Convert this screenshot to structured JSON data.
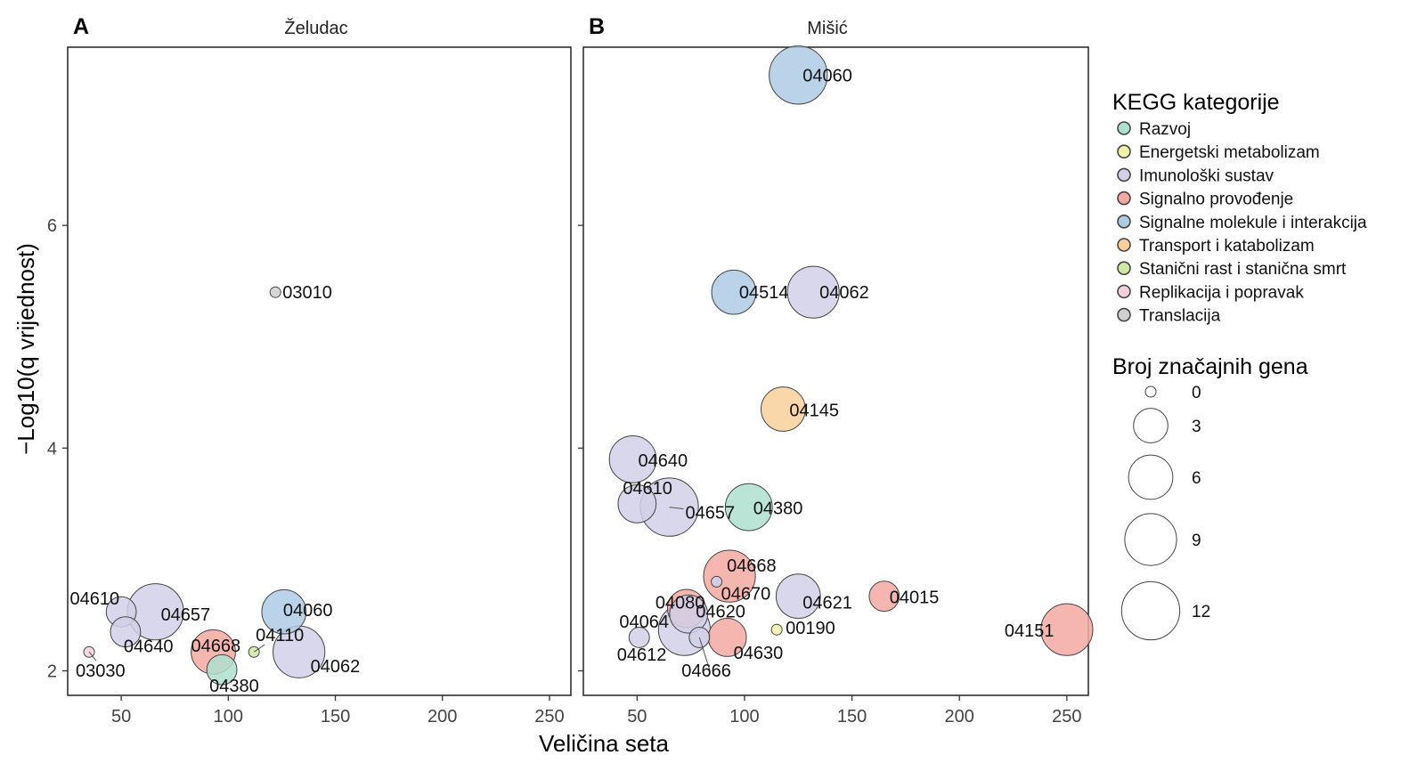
{
  "figure": {
    "ylabel": "−Log10(q vrijednost)",
    "xlabel": "Veličina seta"
  },
  "legend": {
    "category_title": "KEGG kategorije",
    "size_title": "Broj značajnih gena",
    "size_values": [
      "0",
      "3",
      "6",
      "9",
      "12"
    ]
  },
  "colors": {
    "Razvoj": "#aee0cf",
    "Energetski metabolizam": "#f1f2a9",
    "Imunološki sustav": "#d1d0e7",
    "Signalno provođenje": "#f5a9a2",
    "Signalne molekule i interakcija": "#aecbe4",
    "Transport i katabolizam": "#f9cf9c",
    "Stanični rast i stanična smrt": "#cfe8a6",
    "Replikacija i popravak": "#f4d0dd",
    "Translacija": "#cfcfcf"
  },
  "chart_data": [
    {
      "type": "scatter",
      "panel_letter": "A",
      "title": "Želudac",
      "xlabel": "Veličina seta",
      "ylabel": "−Log10(q vrijednost)",
      "xlim": [
        25,
        260
      ],
      "ylim": [
        1.78,
        7.6
      ],
      "xticks": [
        50,
        100,
        150,
        200,
        250
      ],
      "yticks": [
        2,
        4,
        6
      ],
      "size_legend_title": "Broj značajnih gena",
      "points": [
        {
          "label": "03010",
          "x": 122,
          "y": 5.4,
          "genes": 0,
          "category": "Translacija"
        },
        {
          "label": "04610",
          "x": 50,
          "y": 2.53,
          "genes": 2,
          "category": "Imunološki sustav"
        },
        {
          "label": "04657",
          "x": 66,
          "y": 2.53,
          "genes": 11,
          "category": "Imunološki sustav"
        },
        {
          "label": "04640",
          "x": 52,
          "y": 2.35,
          "genes": 2,
          "category": "Imunološki sustav"
        },
        {
          "label": "04060",
          "x": 126,
          "y": 2.53,
          "genes": 6,
          "category": "Signalne molekule i interakcija"
        },
        {
          "label": "04110",
          "x": 112,
          "y": 2.17,
          "genes": 0,
          "category": "Stanični rast i stanična smrt"
        },
        {
          "label": "04668",
          "x": 93,
          "y": 2.17,
          "genes": 6,
          "category": "Signalno provođenje"
        },
        {
          "label": "04062",
          "x": 133,
          "y": 2.17,
          "genes": 9,
          "category": "Imunološki sustav"
        },
        {
          "label": "03030",
          "x": 35,
          "y": 2.17,
          "genes": 0,
          "category": "Replikacija i popravak"
        },
        {
          "label": "04380",
          "x": 97,
          "y": 2.01,
          "genes": 2,
          "category": "Razvoj"
        }
      ]
    },
    {
      "type": "scatter",
      "panel_letter": "B",
      "title": "Mišić",
      "xlabel": "Veličina seta",
      "ylabel": "−Log10(q vrijednost)",
      "xlim": [
        25,
        260
      ],
      "ylim": [
        1.78,
        7.6
      ],
      "xticks": [
        50,
        100,
        150,
        200,
        250
      ],
      "yticks": [
        2,
        4,
        6
      ],
      "size_legend_title": "Broj značajnih gena",
      "points": [
        {
          "label": "04060",
          "x": 125,
          "y": 7.35,
          "genes": 12,
          "category": "Signalne molekule i interakcija"
        },
        {
          "label": "04514",
          "x": 95,
          "y": 5.4,
          "genes": 6,
          "category": "Signalne molekule i interakcija"
        },
        {
          "label": "04062",
          "x": 132,
          "y": 5.4,
          "genes": 9,
          "category": "Imunološki sustav"
        },
        {
          "label": "04145",
          "x": 118,
          "y": 4.35,
          "genes": 6,
          "category": "Transport i katabolizam"
        },
        {
          "label": "04640",
          "x": 48,
          "y": 3.9,
          "genes": 7,
          "category": "Imunološki sustav"
        },
        {
          "label": "04610",
          "x": 50,
          "y": 3.5,
          "genes": 4,
          "category": "Imunološki sustav"
        },
        {
          "label": "04657",
          "x": 65,
          "y": 3.47,
          "genes": 12,
          "category": "Imunološki sustav"
        },
        {
          "label": "04380",
          "x": 102,
          "y": 3.47,
          "genes": 7,
          "category": "Razvoj"
        },
        {
          "label": "04668",
          "x": 93,
          "y": 2.85,
          "genes": 9,
          "category": "Signalno provođenje"
        },
        {
          "label": "04670",
          "x": 87,
          "y": 2.8,
          "genes": 0,
          "category": "Imunološki sustav"
        },
        {
          "label": "04080",
          "x": 73,
          "y": 2.56,
          "genes": 4,
          "category": "Signalno provođenje"
        },
        {
          "label": "04621",
          "x": 125,
          "y": 2.67,
          "genes": 6,
          "category": "Imunološki sustav"
        },
        {
          "label": "04015",
          "x": 165,
          "y": 2.67,
          "genes": 2,
          "category": "Signalno provođenje"
        },
        {
          "label": "04620",
          "x": 74,
          "y": 2.51,
          "genes": 4,
          "category": "Imunološki sustav"
        },
        {
          "label": "00190",
          "x": 115,
          "y": 2.37,
          "genes": 0,
          "category": "Energetski metabolizam"
        },
        {
          "label": "04064",
          "x": 72,
          "y": 2.37,
          "genes": 9,
          "category": "Imunološki sustav"
        },
        {
          "label": "04151",
          "x": 250,
          "y": 2.37,
          "genes": 9,
          "category": "Signalno provođenje"
        },
        {
          "label": "04612",
          "x": 51,
          "y": 2.3,
          "genes": 0.5,
          "category": "Imunološki sustav"
        },
        {
          "label": "04630",
          "x": 92,
          "y": 2.3,
          "genes": 4,
          "category": "Signalno provođenje"
        },
        {
          "label": "04666",
          "x": 79,
          "y": 2.3,
          "genes": 0.5,
          "category": "Imunološki sustav"
        }
      ]
    }
  ]
}
